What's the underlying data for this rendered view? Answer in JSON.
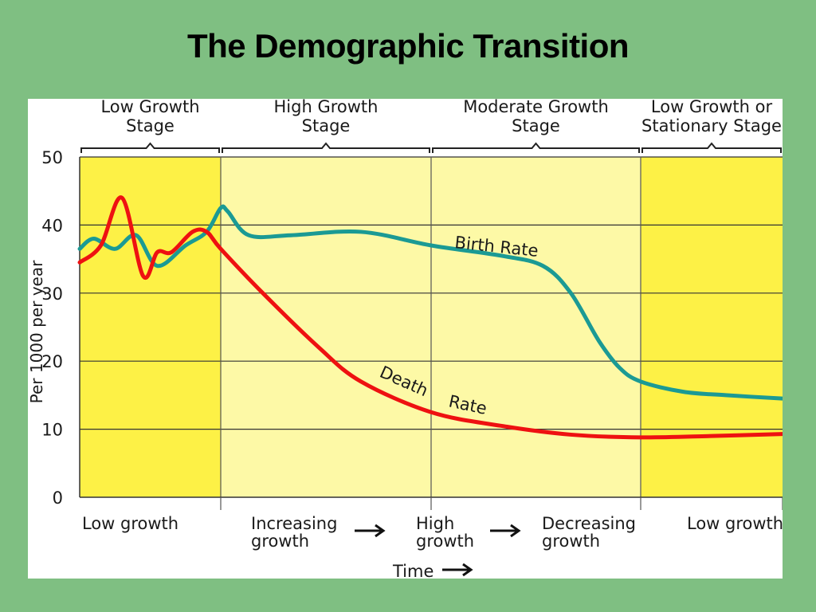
{
  "page": {
    "title": "The Demographic Transition"
  },
  "colors": {
    "background": "#7fbf82",
    "panel": "#ffffff",
    "band_dark": "#fdf146",
    "band_light": "#fdf9a6",
    "birth_rate": "#1b9a94",
    "death_rate": "#ee1111"
  },
  "chart_data": {
    "type": "line",
    "ylabel": "Per 1000 per year",
    "xlabel": "Time",
    "ylim": [
      0,
      50
    ],
    "yticks": [
      "0",
      "10",
      "20",
      "30",
      "40",
      "50"
    ],
    "grid": true,
    "stages": [
      {
        "label": "Low Growth Stage",
        "lines": [
          "Low Growth",
          "Stage"
        ],
        "bottom": [
          "Low growth"
        ],
        "shade": "dark",
        "t_start": 0,
        "t_end": 1
      },
      {
        "label": "High Growth Stage",
        "lines": [
          "High Growth",
          "Stage"
        ],
        "bottom": [
          "Increasing",
          "growth"
        ],
        "shade": "light",
        "t_start": 1,
        "t_end": 2.5
      },
      {
        "label": "Moderate Growth Stage",
        "lines": [
          "Moderate Growth",
          "Stage"
        ],
        "bottom": [
          "High",
          "growth"
        ],
        "shade": "light",
        "t_start": 2.5,
        "t_end": 4
      },
      {
        "label": "Low Growth or Stationary Stage",
        "lines": [
          "Low Growth or",
          "Stationary Stage"
        ],
        "bottom": [
          "Decreasing",
          "growth"
        ],
        "shade": "dark",
        "t_start": 4,
        "t_end": 5
      }
    ],
    "bottom_extra": [
      "Low growth"
    ],
    "time_label": "Time",
    "series": [
      {
        "name": "Birth Rate",
        "label_lines": [
          "Birth Rate"
        ],
        "x": [
          0,
          0.1,
          0.25,
          0.4,
          0.55,
          0.75,
          0.9,
          1.0,
          1.05,
          1.2,
          1.5,
          2.0,
          2.5,
          3.0,
          3.3,
          3.5,
          3.7,
          3.85,
          4.0,
          4.3,
          4.6,
          5.0
        ],
        "values": [
          36.5,
          38,
          36.5,
          38.5,
          34,
          37,
          39,
          42.5,
          42,
          38.5,
          38.5,
          39,
          37,
          35.5,
          34,
          30,
          23,
          19,
          17,
          15.5,
          15,
          14.5
        ]
      },
      {
        "name": "Death Rate",
        "label_lines": [
          "Death",
          "Rate"
        ],
        "x": [
          0,
          0.15,
          0.3,
          0.45,
          0.55,
          0.65,
          0.8,
          0.9,
          1.0,
          1.3,
          1.7,
          2.0,
          2.5,
          3.0,
          3.5,
          4.0,
          4.5,
          5.0
        ],
        "values": [
          34.5,
          37,
          44,
          32.5,
          36,
          36,
          39,
          39,
          36.5,
          30,
          22,
          17,
          12.5,
          10.5,
          9.2,
          8.8,
          9.0,
          9.3
        ]
      }
    ]
  }
}
